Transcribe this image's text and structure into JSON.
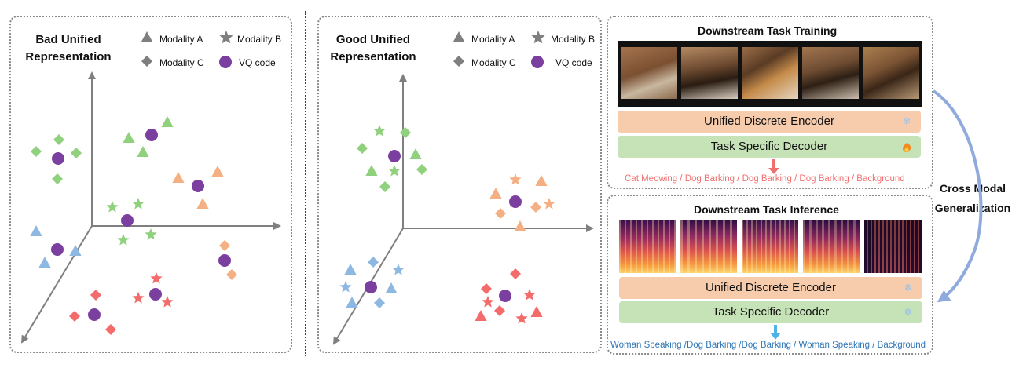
{
  "left_panel": {
    "title_line1": "Bad Unified",
    "title_line2": "Representation"
  },
  "middle_panel": {
    "title_line1": "Good Unified",
    "title_line2": "Representation"
  },
  "legend": {
    "modality_a": "Modality A",
    "modality_b": "Modality B",
    "modality_c": "Modality C",
    "vq_code": "VQ code"
  },
  "colors": {
    "green": "#8fd17c",
    "orange": "#f4b083",
    "red": "#f36b6b",
    "blue": "#8db8e2",
    "purple": "#7b3fa0",
    "legend_gray": "#7f7f7f",
    "encoder_bar": "#f7ccad",
    "decoder_bar": "#c6e3b7",
    "training_output_text": "#f07070",
    "inference_output_text": "#2e75b6",
    "cross_modal_arrow": "#8faadc"
  },
  "training": {
    "title": "Downstream Task Training",
    "encoder_label": "Unified Discrete Encoder",
    "encoder_icon": "snowflake-icon",
    "decoder_label": "Task Specific Decoder",
    "decoder_icon": "fire-icon",
    "outputs": "Cat Meowing /  Dog Barking /  Dog Barking /  Dog Barking /   Background"
  },
  "inference": {
    "title": "Downstream Task Inference",
    "encoder_label": "Unified Discrete Encoder",
    "encoder_icon": "snowflake-icon",
    "decoder_label": "Task Specific Decoder",
    "decoder_icon": "snowflake-icon",
    "outputs": "Woman Speaking /Dog Barking /Dog Barking / Woman Speaking / Background"
  },
  "cross_modal": {
    "line1": "Cross Modal",
    "line2": "Generalization"
  }
}
